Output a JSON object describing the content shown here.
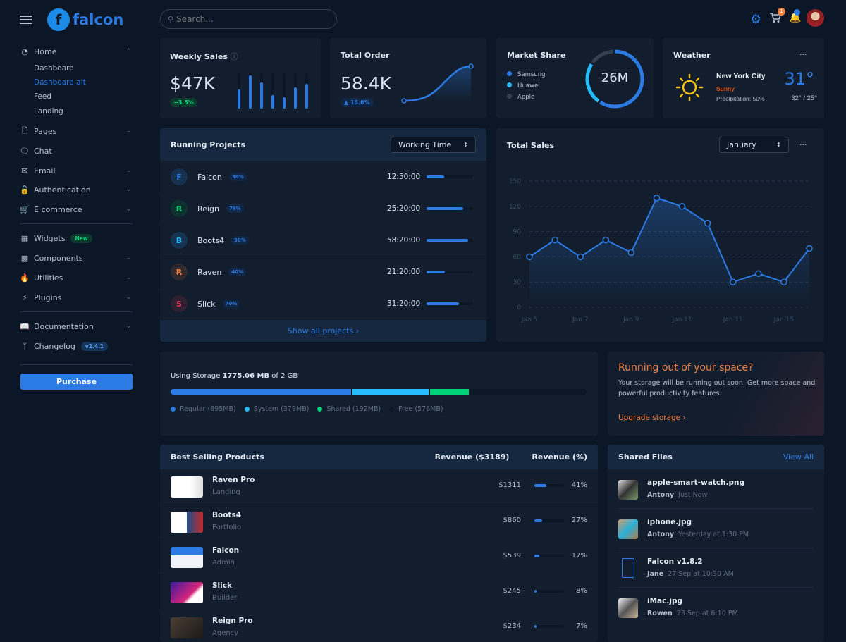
{
  "brand": {
    "name": "falcon"
  },
  "search": {
    "placeholder": "Search..."
  },
  "topbar": {
    "cart_count": "1"
  },
  "sidebar": {
    "home": {
      "label": "Home",
      "children": [
        "Dashboard",
        "Dashboard alt",
        "Feed",
        "Landing"
      ],
      "active": "Dashboard alt"
    },
    "items": [
      {
        "label": "Pages"
      },
      {
        "label": "Chat"
      },
      {
        "label": "Email"
      },
      {
        "label": "Authentication"
      },
      {
        "label": "E commerce"
      }
    ],
    "items2": [
      {
        "label": "Widgets",
        "badge": "New"
      },
      {
        "label": "Components"
      },
      {
        "label": "Utilities"
      },
      {
        "label": "Plugins"
      }
    ],
    "items3": [
      {
        "label": "Documentation"
      },
      {
        "label": "Changelog",
        "badge": "v2.4.1"
      }
    ],
    "purchase": "Purchase"
  },
  "weekly_sales": {
    "title": "Weekly Sales",
    "value": "$47K",
    "change": "+3.5%",
    "bars": [
      0.55,
      0.95,
      0.75,
      0.38,
      0.32,
      0.6,
      0.7
    ]
  },
  "total_order": {
    "title": "Total Order",
    "value": "58.4K",
    "change": "▲ 13.6%"
  },
  "market_share": {
    "title": "Market Share",
    "total": "26M",
    "legend": [
      {
        "name": "Samsung",
        "color": "#2c7be5",
        "share": 60
      },
      {
        "name": "Huawei",
        "color": "#27bcfd",
        "share": 25
      },
      {
        "name": "Apple",
        "color": "#344050",
        "share": 15
      }
    ]
  },
  "weather": {
    "title": "Weather",
    "city": "New York City",
    "condition": "Sunny",
    "precipitation": "Precipitation: 50%",
    "temp": "31°",
    "range": "32° / 25°",
    "menu": "···"
  },
  "projects": {
    "title": "Running Projects",
    "select": "Working Time",
    "footer": "Show all projects ›",
    "rows": [
      {
        "initial": "F",
        "name": "Falcon",
        "percent": "38%",
        "progress": 38,
        "time": "12:50:00",
        "color": "#2c7be5",
        "bg": "#16304f"
      },
      {
        "initial": "R",
        "name": "Reign",
        "percent": "79%",
        "progress": 79,
        "time": "25:20:00",
        "color": "#00d27a",
        "bg": "#0d3330"
      },
      {
        "initial": "B",
        "name": "Boots4",
        "percent": "90%",
        "progress": 90,
        "time": "58:20:00",
        "color": "#27bcfd",
        "bg": "#143452"
      },
      {
        "initial": "R",
        "name": "Raven",
        "percent": "40%",
        "progress": 40,
        "time": "21:20:00",
        "color": "#f5803e",
        "bg": "#2f2a2d"
      },
      {
        "initial": "S",
        "name": "Slick",
        "percent": "70%",
        "progress": 70,
        "time": "31:20:00",
        "color": "#e63757",
        "bg": "#2f1f31"
      }
    ]
  },
  "total_sales": {
    "title": "Total Sales",
    "select": "January",
    "menu": "···"
  },
  "chart_data": {
    "type": "line",
    "title": "Total Sales",
    "x": [
      "Jan 5",
      "Jan 6",
      "Jan 7",
      "Jan 8",
      "Jan 9",
      "Jan 10",
      "Jan 11",
      "Jan 12",
      "Jan 13",
      "Jan 14",
      "Jan 15",
      "Jan 16"
    ],
    "xticks": [
      "Jan 5",
      "Jan 7",
      "Jan 9",
      "Jan 11",
      "Jan 13",
      "Jan 15"
    ],
    "values": [
      60,
      80,
      60,
      80,
      65,
      130,
      120,
      100,
      30,
      40,
      30,
      70
    ],
    "ylim": [
      0,
      150
    ],
    "yticks": [
      "0",
      "30",
      "60",
      "90",
      "120",
      "150"
    ],
    "grid": true
  },
  "storage": {
    "prefix": "Using Storage ",
    "used": "1775.06 MB",
    "suffix": " of 2 GB",
    "segments": [
      {
        "label": "Regular (895MB)",
        "mb": 895,
        "color": "#2c7be5"
      },
      {
        "label": "System (379MB)",
        "mb": 379,
        "color": "#27bcfd"
      },
      {
        "label": "Shared (192MB)",
        "mb": 192,
        "color": "#00d27a"
      },
      {
        "label": "Free (576MB)",
        "mb": 576,
        "color": "#0b1727"
      }
    ]
  },
  "space_warning": {
    "title": "Running out of your space?",
    "text": "Your storage will be running out soon. Get more space and powerful productivity features.",
    "link": "Upgrade storage ›"
  },
  "products": {
    "title": "Best Selling Products",
    "col1": "Revenue ($3189)",
    "col2": "Revenue (%)",
    "rows": [
      {
        "name": "Raven Pro",
        "type": "Landing",
        "revenue": "$1311",
        "percent": "41%",
        "p": 41
      },
      {
        "name": "Boots4",
        "type": "Portfolio",
        "revenue": "$860",
        "percent": "27%",
        "p": 27
      },
      {
        "name": "Falcon",
        "type": "Admin",
        "revenue": "$539",
        "percent": "17%",
        "p": 17
      },
      {
        "name": "Slick",
        "type": "Builder",
        "revenue": "$245",
        "percent": "8%",
        "p": 8
      },
      {
        "name": "Reign Pro",
        "type": "Agency",
        "revenue": "$234",
        "percent": "7%",
        "p": 7
      }
    ]
  },
  "files": {
    "title": "Shared Files",
    "view_all": "View All",
    "rows": [
      {
        "name": "apple-smart-watch.png",
        "user": "Antony",
        "time": "Just Now"
      },
      {
        "name": "iphone.jpg",
        "user": "Antony",
        "time": "Yesterday at 1:30 PM"
      },
      {
        "name": "Falcon v1.8.2",
        "user": "Jane",
        "time": "27 Sep at 10:30 AM"
      },
      {
        "name": "iMac.jpg",
        "user": "Rowen",
        "time": "23 Sep at 6:10 PM"
      }
    ]
  }
}
